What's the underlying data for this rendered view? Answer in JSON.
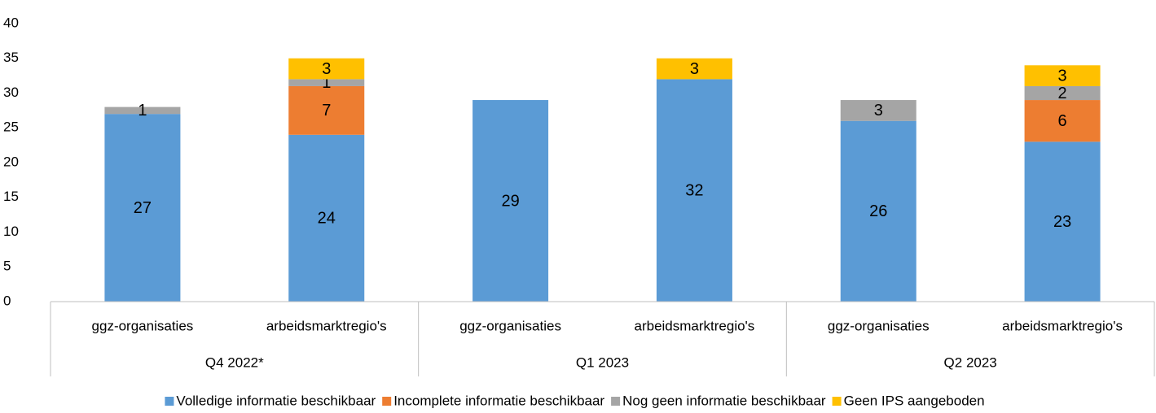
{
  "chart_data": {
    "type": "stacked_bar",
    "categories": [
      "ggz-organisaties",
      "arbeidsmarktregio's",
      "ggz-organisaties",
      "arbeidsmarktregio's",
      "ggz-organisaties",
      "arbeidsmarktregio's"
    ],
    "groups": [
      "Q4 2022*",
      "Q1 2023",
      "Q2 2023"
    ],
    "series": [
      {
        "name": "Volledige informatie beschikbaar",
        "color": "#5b9bd5",
        "values": [
          27,
          24,
          29,
          32,
          26,
          23
        ]
      },
      {
        "name": "Incomplete informatie beschikbaar",
        "color": "#ed7d31",
        "values": [
          null,
          7,
          null,
          null,
          null,
          6
        ]
      },
      {
        "name": "Nog geen informatie beschikbaar",
        "color": "#a5a5a5",
        "values": [
          1,
          1,
          null,
          null,
          3,
          2
        ]
      },
      {
        "name": "Geen IPS aangeboden",
        "color": "#ffc000",
        "values": [
          null,
          3,
          null,
          3,
          null,
          3
        ]
      }
    ],
    "ylim": [
      0,
      40
    ],
    "yticks": [
      0,
      5,
      10,
      15,
      20,
      25,
      30,
      35,
      40
    ],
    "grid": false,
    "legend": "bottom"
  }
}
